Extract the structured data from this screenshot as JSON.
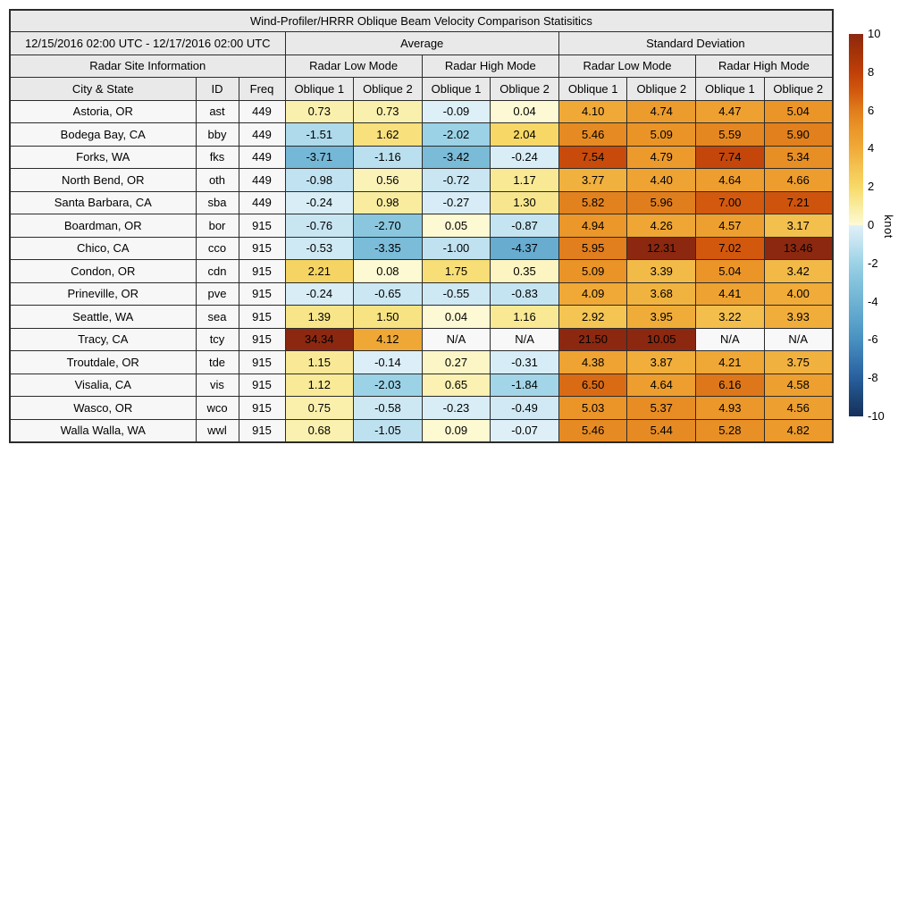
{
  "chart_data": {
    "type": "table",
    "title": "Wind-Profiler/HRRR Oblique Beam Velocity Comparison Statisitics",
    "header": {
      "date_range": "12/15/2016 02:00 UTC - 12/17/2016 02:00 UTC",
      "group_average": "Average",
      "group_std": "Standard Deviation",
      "site_info": "Radar Site Information",
      "mode_low": "Radar Low Mode",
      "mode_high": "Radar High Mode",
      "col_city": "City & State",
      "col_id": "ID",
      "col_freq": "Freq",
      "oblique1": "Oblique 1",
      "oblique2": "Oblique 2"
    },
    "rows": [
      {
        "city": "Astoria, OR",
        "id": "ast",
        "freq": "449",
        "values": [
          "0.73",
          "0.73",
          "-0.09",
          "0.04",
          "4.10",
          "4.74",
          "4.47",
          "5.04"
        ]
      },
      {
        "city": "Bodega Bay, CA",
        "id": "bby",
        "freq": "449",
        "values": [
          "-1.51",
          "1.62",
          "-2.02",
          "2.04",
          "5.46",
          "5.09",
          "5.59",
          "5.90"
        ]
      },
      {
        "city": "Forks, WA",
        "id": "fks",
        "freq": "449",
        "values": [
          "-3.71",
          "-1.16",
          "-3.42",
          "-0.24",
          "7.54",
          "4.79",
          "7.74",
          "5.34"
        ]
      },
      {
        "city": "North Bend, OR",
        "id": "oth",
        "freq": "449",
        "values": [
          "-0.98",
          "0.56",
          "-0.72",
          "1.17",
          "3.77",
          "4.40",
          "4.64",
          "4.66"
        ]
      },
      {
        "city": "Santa Barbara, CA",
        "id": "sba",
        "freq": "449",
        "values": [
          "-0.24",
          "0.98",
          "-0.27",
          "1.30",
          "5.82",
          "5.96",
          "7.00",
          "7.21"
        ]
      },
      {
        "city": "Boardman, OR",
        "id": "bor",
        "freq": "915",
        "values": [
          "-0.76",
          "-2.70",
          "0.05",
          "-0.87",
          "4.94",
          "4.26",
          "4.57",
          "3.17"
        ]
      },
      {
        "city": "Chico, CA",
        "id": "cco",
        "freq": "915",
        "values": [
          "-0.53",
          "-3.35",
          "-1.00",
          "-4.37",
          "5.95",
          "12.31",
          "7.02",
          "13.46"
        ]
      },
      {
        "city": "Condon, OR",
        "id": "cdn",
        "freq": "915",
        "values": [
          "2.21",
          "0.08",
          "1.75",
          "0.35",
          "5.09",
          "3.39",
          "5.04",
          "3.42"
        ]
      },
      {
        "city": "Prineville, OR",
        "id": "pve",
        "freq": "915",
        "values": [
          "-0.24",
          "-0.65",
          "-0.55",
          "-0.83",
          "4.09",
          "3.68",
          "4.41",
          "4.00"
        ]
      },
      {
        "city": "Seattle, WA",
        "id": "sea",
        "freq": "915",
        "values": [
          "1.39",
          "1.50",
          "0.04",
          "1.16",
          "2.92",
          "3.95",
          "3.22",
          "3.93"
        ]
      },
      {
        "city": "Tracy, CA",
        "id": "tcy",
        "freq": "915",
        "values": [
          "34.34",
          "4.12",
          "N/A",
          "N/A",
          "21.50",
          "10.05",
          "N/A",
          "N/A"
        ]
      },
      {
        "city": "Troutdale, OR",
        "id": "tde",
        "freq": "915",
        "values": [
          "1.15",
          "-0.14",
          "0.27",
          "-0.31",
          "4.38",
          "3.87",
          "4.21",
          "3.75"
        ]
      },
      {
        "city": "Visalia, CA",
        "id": "vis",
        "freq": "915",
        "values": [
          "1.12",
          "-2.03",
          "0.65",
          "-1.84",
          "6.50",
          "4.64",
          "6.16",
          "4.58"
        ]
      },
      {
        "city": "Wasco, OR",
        "id": "wco",
        "freq": "915",
        "values": [
          "0.75",
          "-0.58",
          "-0.23",
          "-0.49",
          "5.03",
          "5.37",
          "4.93",
          "4.56"
        ]
      },
      {
        "city": "Walla Walla, WA",
        "id": "wwl",
        "freq": "915",
        "values": [
          "0.68",
          "-1.05",
          "0.09",
          "-0.07",
          "5.46",
          "5.44",
          "5.28",
          "4.82"
        ]
      }
    ],
    "colorbar": {
      "label": "knot",
      "min": -10,
      "max": 10,
      "ticks": [
        10,
        8,
        6,
        4,
        2,
        0,
        -2,
        -4,
        -6,
        -8,
        -10
      ]
    },
    "colormap": {
      "positive_stops": [
        "#fdfad6",
        "#f9ec9e",
        "#f7d968",
        "#f4c351",
        "#f0ab38",
        "#eb9629",
        "#e07d1c",
        "#d2590e",
        "#bf3f09",
        "#a53307",
        "#8c2810"
      ],
      "negative_stops": [
        "#e0f0f8",
        "#c0e2f0",
        "#9cd2e6",
        "#82c2dc",
        "#6fb2d3",
        "#5ba3cb",
        "#4890c0",
        "#3777b0",
        "#285f9d",
        "#1d4779",
        "#152f5a"
      ],
      "na_color": "#f8f8f8"
    }
  },
  "colors": {
    "header_bg": "#e9e9e9",
    "label_col_bg": "#f7f7f7",
    "border": "#2b2b2b",
    "page_bg": "#ffffff"
  }
}
